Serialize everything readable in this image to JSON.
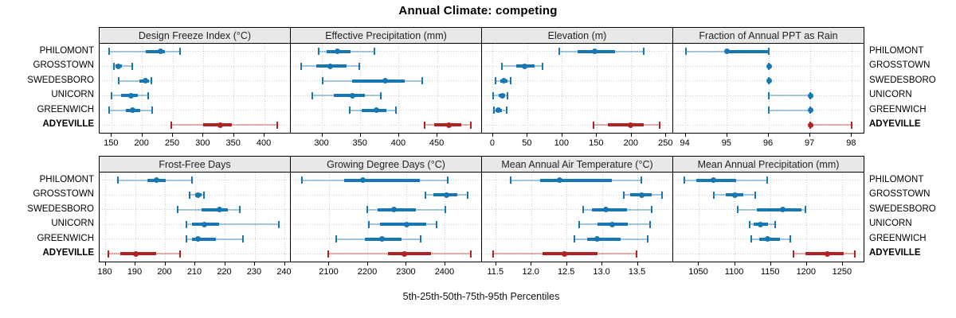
{
  "title": "Annual Climate: competing",
  "caption": "5th-25th-50th-75th-95th Percentiles",
  "highlight": "ADYEVILLE",
  "colors": {
    "series": "#1777b4",
    "series_light": "rgba(23,119,180,0.38)",
    "highlight": "#b22222",
    "highlight_light": "rgba(178,34,34,0.35)",
    "grid": "#c9c9c9",
    "strip_bg": "#e8e8e8",
    "border": "#000000"
  },
  "chart_data": {
    "type": "dot-whisker-trellis",
    "percentiles": [
      "5th",
      "25th",
      "50th",
      "75th",
      "95th"
    ],
    "categories": [
      "PHILOMONT",
      "GROSSTOWN",
      "SWEDESBORO",
      "UNICORN",
      "GREENWICH",
      "ADYEVILLE"
    ],
    "panels": [
      {
        "title": "Design Freeze Index (°C)",
        "row": 0,
        "col": 0,
        "domain": [
          130,
          443
        ],
        "ticks": [
          150,
          200,
          250,
          300,
          350,
          400
        ],
        "tick_labels": [
          "150",
          "200",
          "250",
          "300",
          "350",
          "400"
        ],
        "series": [
          {
            "name": "PHILOMONT",
            "values": [
              146,
              206,
              230,
              237,
              262
            ]
          },
          {
            "name": "GROSSTOWN",
            "values": [
              153,
              156,
              161,
              167,
              184
            ]
          },
          {
            "name": "SWEDESBORO",
            "values": [
              161,
              195,
              205,
              211,
              215
            ]
          },
          {
            "name": "UNICORN",
            "values": [
              150,
              165,
              181,
              193,
              209
            ]
          },
          {
            "name": "GREENWICH",
            "values": [
              146,
              173,
              184,
              197,
              216
            ]
          },
          {
            "name": "ADYEVILLE",
            "values": [
              247,
              299,
              328,
              346,
              421
            ]
          }
        ]
      },
      {
        "title": "Effective Precipitation (mm)",
        "row": 0,
        "col": 1,
        "domain": [
          259,
          508
        ],
        "ticks": [
          300,
          350,
          400,
          450
        ],
        "tick_labels": [
          "300",
          "350",
          "400",
          "450"
        ],
        "series": [
          {
            "name": "PHILOMONT",
            "values": [
              295,
              306,
              320,
              337,
              368
            ]
          },
          {
            "name": "GROSSTOWN",
            "values": [
              273,
              292,
              310,
              332,
              348
            ]
          },
          {
            "name": "SWEDESBORO",
            "values": [
              300,
              339,
              382,
              407,
              430
            ]
          },
          {
            "name": "UNICORN",
            "values": [
              287,
              315,
              339,
              355,
              376
            ]
          },
          {
            "name": "GREENWICH",
            "values": [
              336,
              351,
              371,
              384,
              396
            ]
          },
          {
            "name": "ADYEVILLE",
            "values": [
              433,
              446,
              465,
              481,
              493
            ]
          }
        ]
      },
      {
        "title": "Elevation (m)",
        "row": 0,
        "col": 2,
        "domain": [
          -16,
          260
        ],
        "ticks": [
          0,
          50,
          100,
          150,
          200,
          250
        ],
        "tick_labels": [
          "0",
          "50",
          "100",
          "150",
          "200",
          "250"
        ],
        "series": [
          {
            "name": "PHILOMONT",
            "values": [
              96,
              122,
              147,
              176,
              218
            ]
          },
          {
            "name": "GROSSTOWN",
            "values": [
              13,
              34,
              46,
              60,
              71
            ]
          },
          {
            "name": "SWEDESBORO",
            "values": [
              3,
              10,
              16,
              21,
              25
            ]
          },
          {
            "name": "UNICORN",
            "values": [
              0,
              8,
              13,
              17,
              21
            ]
          },
          {
            "name": "GREENWICH",
            "values": [
              1,
              4,
              8,
              13,
              20
            ]
          },
          {
            "name": "ADYEVILLE",
            "values": [
              145,
              166,
              198,
              217,
              241
            ]
          }
        ]
      },
      {
        "title": "Fraction of Annual PPT as Rain",
        "row": 0,
        "col": 3,
        "domain": [
          93.7,
          98.3
        ],
        "ticks": [
          94,
          95,
          96,
          97,
          98
        ],
        "tick_labels": [
          "94",
          "95",
          "96",
          "97",
          "98"
        ],
        "series": [
          {
            "name": "PHILOMONT",
            "values": [
              94,
              95,
              95,
              96,
              96
            ]
          },
          {
            "name": "GROSSTOWN",
            "values": [
              96,
              96,
              96,
              96,
              96
            ]
          },
          {
            "name": "SWEDESBORO",
            "values": [
              96,
              96,
              96,
              96,
              96
            ]
          },
          {
            "name": "UNICORN",
            "values": [
              96,
              97,
              97,
              97,
              97
            ]
          },
          {
            "name": "GREENWICH",
            "values": [
              96,
              97,
              97,
              97,
              97
            ]
          },
          {
            "name": "ADYEVILLE",
            "values": [
              97,
              97,
              97,
              97,
              98
            ]
          }
        ]
      },
      {
        "title": "Frost-Free Days",
        "row": 1,
        "col": 0,
        "domain": [
          178,
          242
        ],
        "ticks": [
          180,
          190,
          200,
          210,
          220,
          230,
          240
        ],
        "tick_labels": [
          "180",
          "190",
          "200",
          "210",
          "220",
          "230",
          "240"
        ],
        "series": [
          {
            "name": "PHILOMONT",
            "values": [
              184,
              194,
              197,
              200,
              209
            ]
          },
          {
            "name": "GROSSTOWN",
            "values": [
              208,
              210,
              211,
              212,
              213
            ]
          },
          {
            "name": "SWEDESBORO",
            "values": [
              204,
              212,
              218,
              221,
              225
            ]
          },
          {
            "name": "UNICORN",
            "values": [
              207,
              209,
              213,
              218,
              238
            ]
          },
          {
            "name": "GREENWICH",
            "values": [
              207,
              209,
              211,
              217,
              226
            ]
          },
          {
            "name": "ADYEVILLE",
            "values": [
              181,
              185,
              190,
              197,
              205
            ]
          }
        ]
      },
      {
        "title": "Growing Degree Days (°C)",
        "row": 1,
        "col": 1,
        "domain": [
          2000,
          2495
        ],
        "ticks": [
          2100,
          2200,
          2300,
          2400
        ],
        "tick_labels": [
          "2100",
          "2200",
          "2300",
          "2400"
        ],
        "series": [
          {
            "name": "PHILOMONT",
            "values": [
              2029,
              2139,
              2186,
              2335,
              2407
            ]
          },
          {
            "name": "GROSSTOWN",
            "values": [
              2348,
              2369,
              2404,
              2431,
              2458
            ]
          },
          {
            "name": "SWEDESBORO",
            "values": [
              2197,
              2225,
              2267,
              2324,
              2401
            ]
          },
          {
            "name": "UNICORN",
            "values": [
              2203,
              2230,
              2300,
              2350,
              2377
            ]
          },
          {
            "name": "GREENWICH",
            "values": [
              2117,
              2191,
              2236,
              2287,
              2336
            ]
          },
          {
            "name": "ADYEVILLE",
            "values": [
              2097,
              2251,
              2293,
              2364,
              2467
            ]
          }
        ]
      },
      {
        "title": "Mean Annual Air Temperature (°C)",
        "row": 1,
        "col": 2,
        "domain": [
          11.3,
          14.0
        ],
        "ticks": [
          11.5,
          12.0,
          12.5,
          13.0,
          13.5
        ],
        "tick_labels": [
          "11.5",
          "12.0",
          "12.5",
          "13.0",
          "13.5"
        ],
        "series": [
          {
            "name": "PHILOMONT",
            "values": [
              11.7,
              12.12,
              12.4,
              13.13,
              13.55
            ]
          },
          {
            "name": "GROSSTOWN",
            "values": [
              13.3,
              13.39,
              13.55,
              13.7,
              13.84
            ]
          },
          {
            "name": "SWEDESBORO",
            "values": [
              12.73,
              12.85,
              13.05,
              13.35,
              13.7
            ]
          },
          {
            "name": "UNICORN",
            "values": [
              12.67,
              12.93,
              13.14,
              13.36,
              13.67
            ]
          },
          {
            "name": "GREENWICH",
            "values": [
              12.61,
              12.78,
              12.92,
              13.26,
              13.64
            ]
          },
          {
            "name": "ADYEVILLE",
            "values": [
              11.46,
              12.16,
              12.46,
              12.93,
              13.48
            ]
          }
        ]
      },
      {
        "title": "Mean Annual Precipitation (mm)",
        "row": 1,
        "col": 3,
        "domain": [
          1014,
          1280
        ],
        "ticks": [
          1050,
          1100,
          1150,
          1200,
          1250
        ],
        "tick_labels": [
          "1050",
          "1100",
          "1150",
          "1200",
          "1250"
        ],
        "series": [
          {
            "name": "PHILOMONT",
            "values": [
              1030,
              1046,
              1070,
              1102,
              1145
            ]
          },
          {
            "name": "GROSSTOWN",
            "values": [
              1071,
              1087,
              1100,
              1112,
              1128
            ]
          },
          {
            "name": "SWEDESBORO",
            "values": [
              1104,
              1130,
              1166,
              1192,
              1198
            ]
          },
          {
            "name": "UNICORN",
            "values": [
              1120,
              1126,
              1135,
              1146,
              1156
            ]
          },
          {
            "name": "GREENWICH",
            "values": [
              1123,
              1134,
              1145,
              1163,
              1177
            ]
          },
          {
            "name": "ADYEVILLE",
            "values": [
              1181,
              1198,
              1229,
              1251,
              1267
            ]
          }
        ]
      }
    ]
  }
}
